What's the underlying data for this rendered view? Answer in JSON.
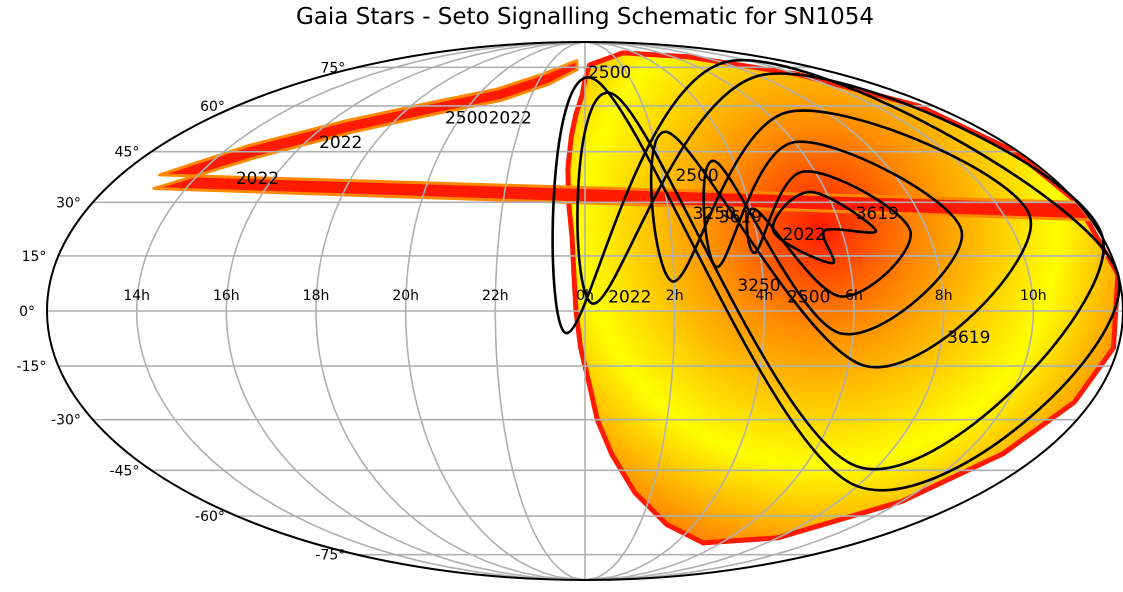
{
  "chart_data": {
    "type": "scatter",
    "title": "Gaia Stars - Seto Signalling Schematic for SN1054",
    "projection": "mollweide",
    "grid": true,
    "x_tick_labels": [
      "14h",
      "16h",
      "18h",
      "20h",
      "22h",
      "0h",
      "2h",
      "4h",
      "6h",
      "8h",
      "10h"
    ],
    "y_tick_labels": [
      "75°",
      "60°",
      "45°",
      "30°",
      "15°",
      "0°",
      "-15°",
      "-30°",
      "-45°",
      "-60°",
      "-75°"
    ],
    "colormap": [
      "#ff1a00",
      "#ff8800",
      "#ffff00"
    ],
    "source": {
      "ra_hours": 5.58,
      "dec_deg": 22.0
    },
    "contours": [
      {
        "level": "2022",
        "points": [
          [
            5.6,
            22
          ],
          [
            6.8,
            22
          ],
          [
            5.6,
            33
          ],
          [
            4.4,
            22
          ],
          [
            5.6,
            13
          ]
        ]
      },
      {
        "level": "2500",
        "points": [
          [
            4.1,
            28
          ],
          [
            5.7,
            4
          ],
          [
            7.6,
            22
          ],
          [
            5.7,
            39
          ],
          [
            3.9,
            16
          ]
        ]
      },
      {
        "level": "3250",
        "points": [
          [
            3.5,
            42
          ],
          [
            5.7,
            -6
          ],
          [
            8.8,
            22
          ],
          [
            6.0,
            48
          ],
          [
            3.0,
            12
          ]
        ]
      },
      {
        "level": "3619",
        "points": [
          [
            2.5,
            51
          ],
          [
            6.4,
            -15
          ],
          [
            10.6,
            26
          ],
          [
            6.8,
            58
          ],
          [
            2.0,
            8
          ]
        ]
      },
      {
        "level": "2022",
        "points": [
          [
            1.1,
            64
          ],
          [
            7.5,
            -44
          ],
          [
            12.0,
            20
          ],
          [
            8.5,
            72
          ],
          [
            0.2,
            2
          ]
        ]
      },
      {
        "level": "2500",
        "points": [
          [
            0.4,
            70
          ],
          [
            8.0,
            -50
          ],
          [
            12.0,
            10
          ],
          [
            9.0,
            78
          ],
          [
            23.6,
            -6
          ]
        ]
      }
    ],
    "contour_labels": [
      {
        "text": "2022",
        "ra": 5.1,
        "dec": 21
      },
      {
        "text": "2500",
        "ra": 5.0,
        "dec": 4
      },
      {
        "text": "3250",
        "ra": 3.9,
        "dec": 7
      },
      {
        "text": "3619",
        "ra": 7.0,
        "dec": 27
      },
      {
        "text": "3619",
        "ra": 3.7,
        "dec": 26
      },
      {
        "text": "3250",
        "ra": 3.1,
        "dec": 27
      },
      {
        "text": "3619",
        "ra": 8.6,
        "dec": -7
      },
      {
        "text": "2500",
        "ra": 2.9,
        "dec": 38
      },
      {
        "text": "2022",
        "ra": 1.0,
        "dec": 4
      },
      {
        "text": "2500",
        "ra": 1.2,
        "dec": 73
      },
      {
        "text": "2022",
        "ra": 21.6,
        "dec": 56
      },
      {
        "text": "2500",
        "ra": 20.2,
        "dec": 56
      },
      {
        "text": "2022",
        "ra": 17.0,
        "dec": 48
      },
      {
        "text": "2022",
        "ra": 15.6,
        "dec": 37
      }
    ]
  }
}
